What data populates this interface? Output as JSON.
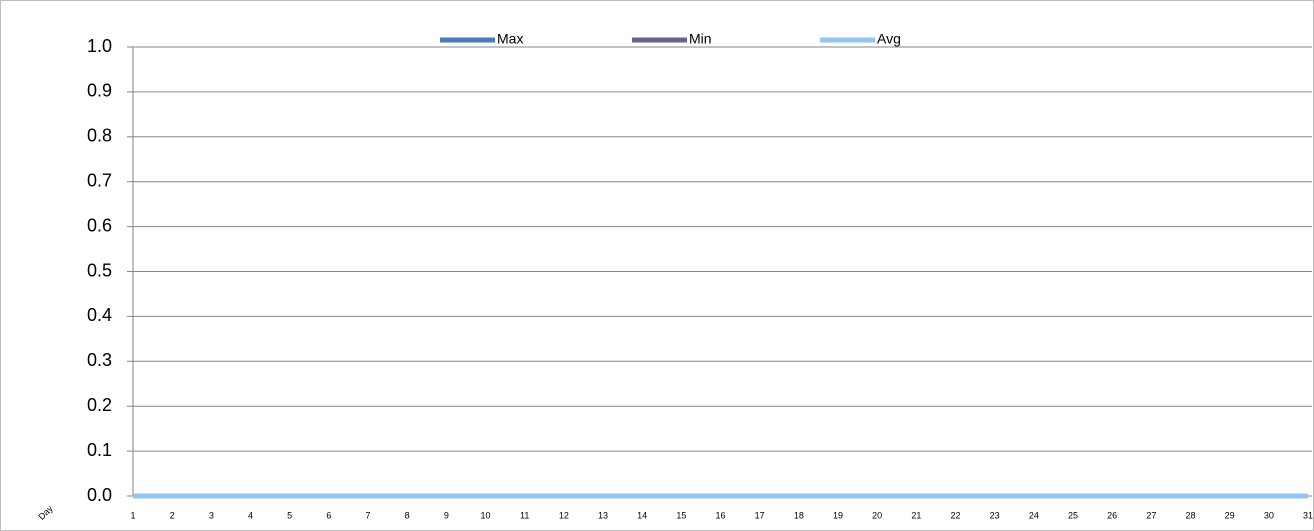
{
  "chart_data": {
    "type": "line",
    "x_label": "Day",
    "categories": [
      "1",
      "2",
      "3",
      "4",
      "5",
      "6",
      "7",
      "8",
      "9",
      "10",
      "11",
      "12",
      "13",
      "14",
      "15",
      "16",
      "17",
      "18",
      "19",
      "20",
      "21",
      "22",
      "23",
      "24",
      "25",
      "26",
      "27",
      "28",
      "29",
      "30",
      "31"
    ],
    "series": [
      {
        "name": "Max",
        "color": "#4a7ab8",
        "values": [
          0,
          0,
          0,
          0,
          0,
          0,
          0,
          0,
          0,
          0,
          0,
          0,
          0,
          0,
          0,
          0,
          0,
          0,
          0,
          0,
          0,
          0,
          0,
          0,
          0,
          0,
          0,
          0,
          0,
          0,
          0
        ]
      },
      {
        "name": "Min",
        "color": "#6b6190",
        "values": [
          0,
          0,
          0,
          0,
          0,
          0,
          0,
          0,
          0,
          0,
          0,
          0,
          0,
          0,
          0,
          0,
          0,
          0,
          0,
          0,
          0,
          0,
          0,
          0,
          0,
          0,
          0,
          0,
          0,
          0,
          0
        ]
      },
      {
        "name": "Avg",
        "color": "#92c5f2",
        "values": [
          0,
          0,
          0,
          0,
          0,
          0,
          0,
          0,
          0,
          0,
          0,
          0,
          0,
          0,
          0,
          0,
          0,
          0,
          0,
          0,
          0,
          0,
          0,
          0,
          0,
          0,
          0,
          0,
          0,
          0,
          0
        ]
      }
    ],
    "ylim": [
      0,
      1
    ],
    "yticks": [
      {
        "value": 0,
        "label": "0.0"
      },
      0.1,
      0.2,
      0.3,
      0.4,
      0.5,
      0.6,
      0.7,
      0.8,
      0.9,
      {
        "value": 1,
        "label": "1.0"
      }
    ],
    "grid": true,
    "legend": "top"
  }
}
